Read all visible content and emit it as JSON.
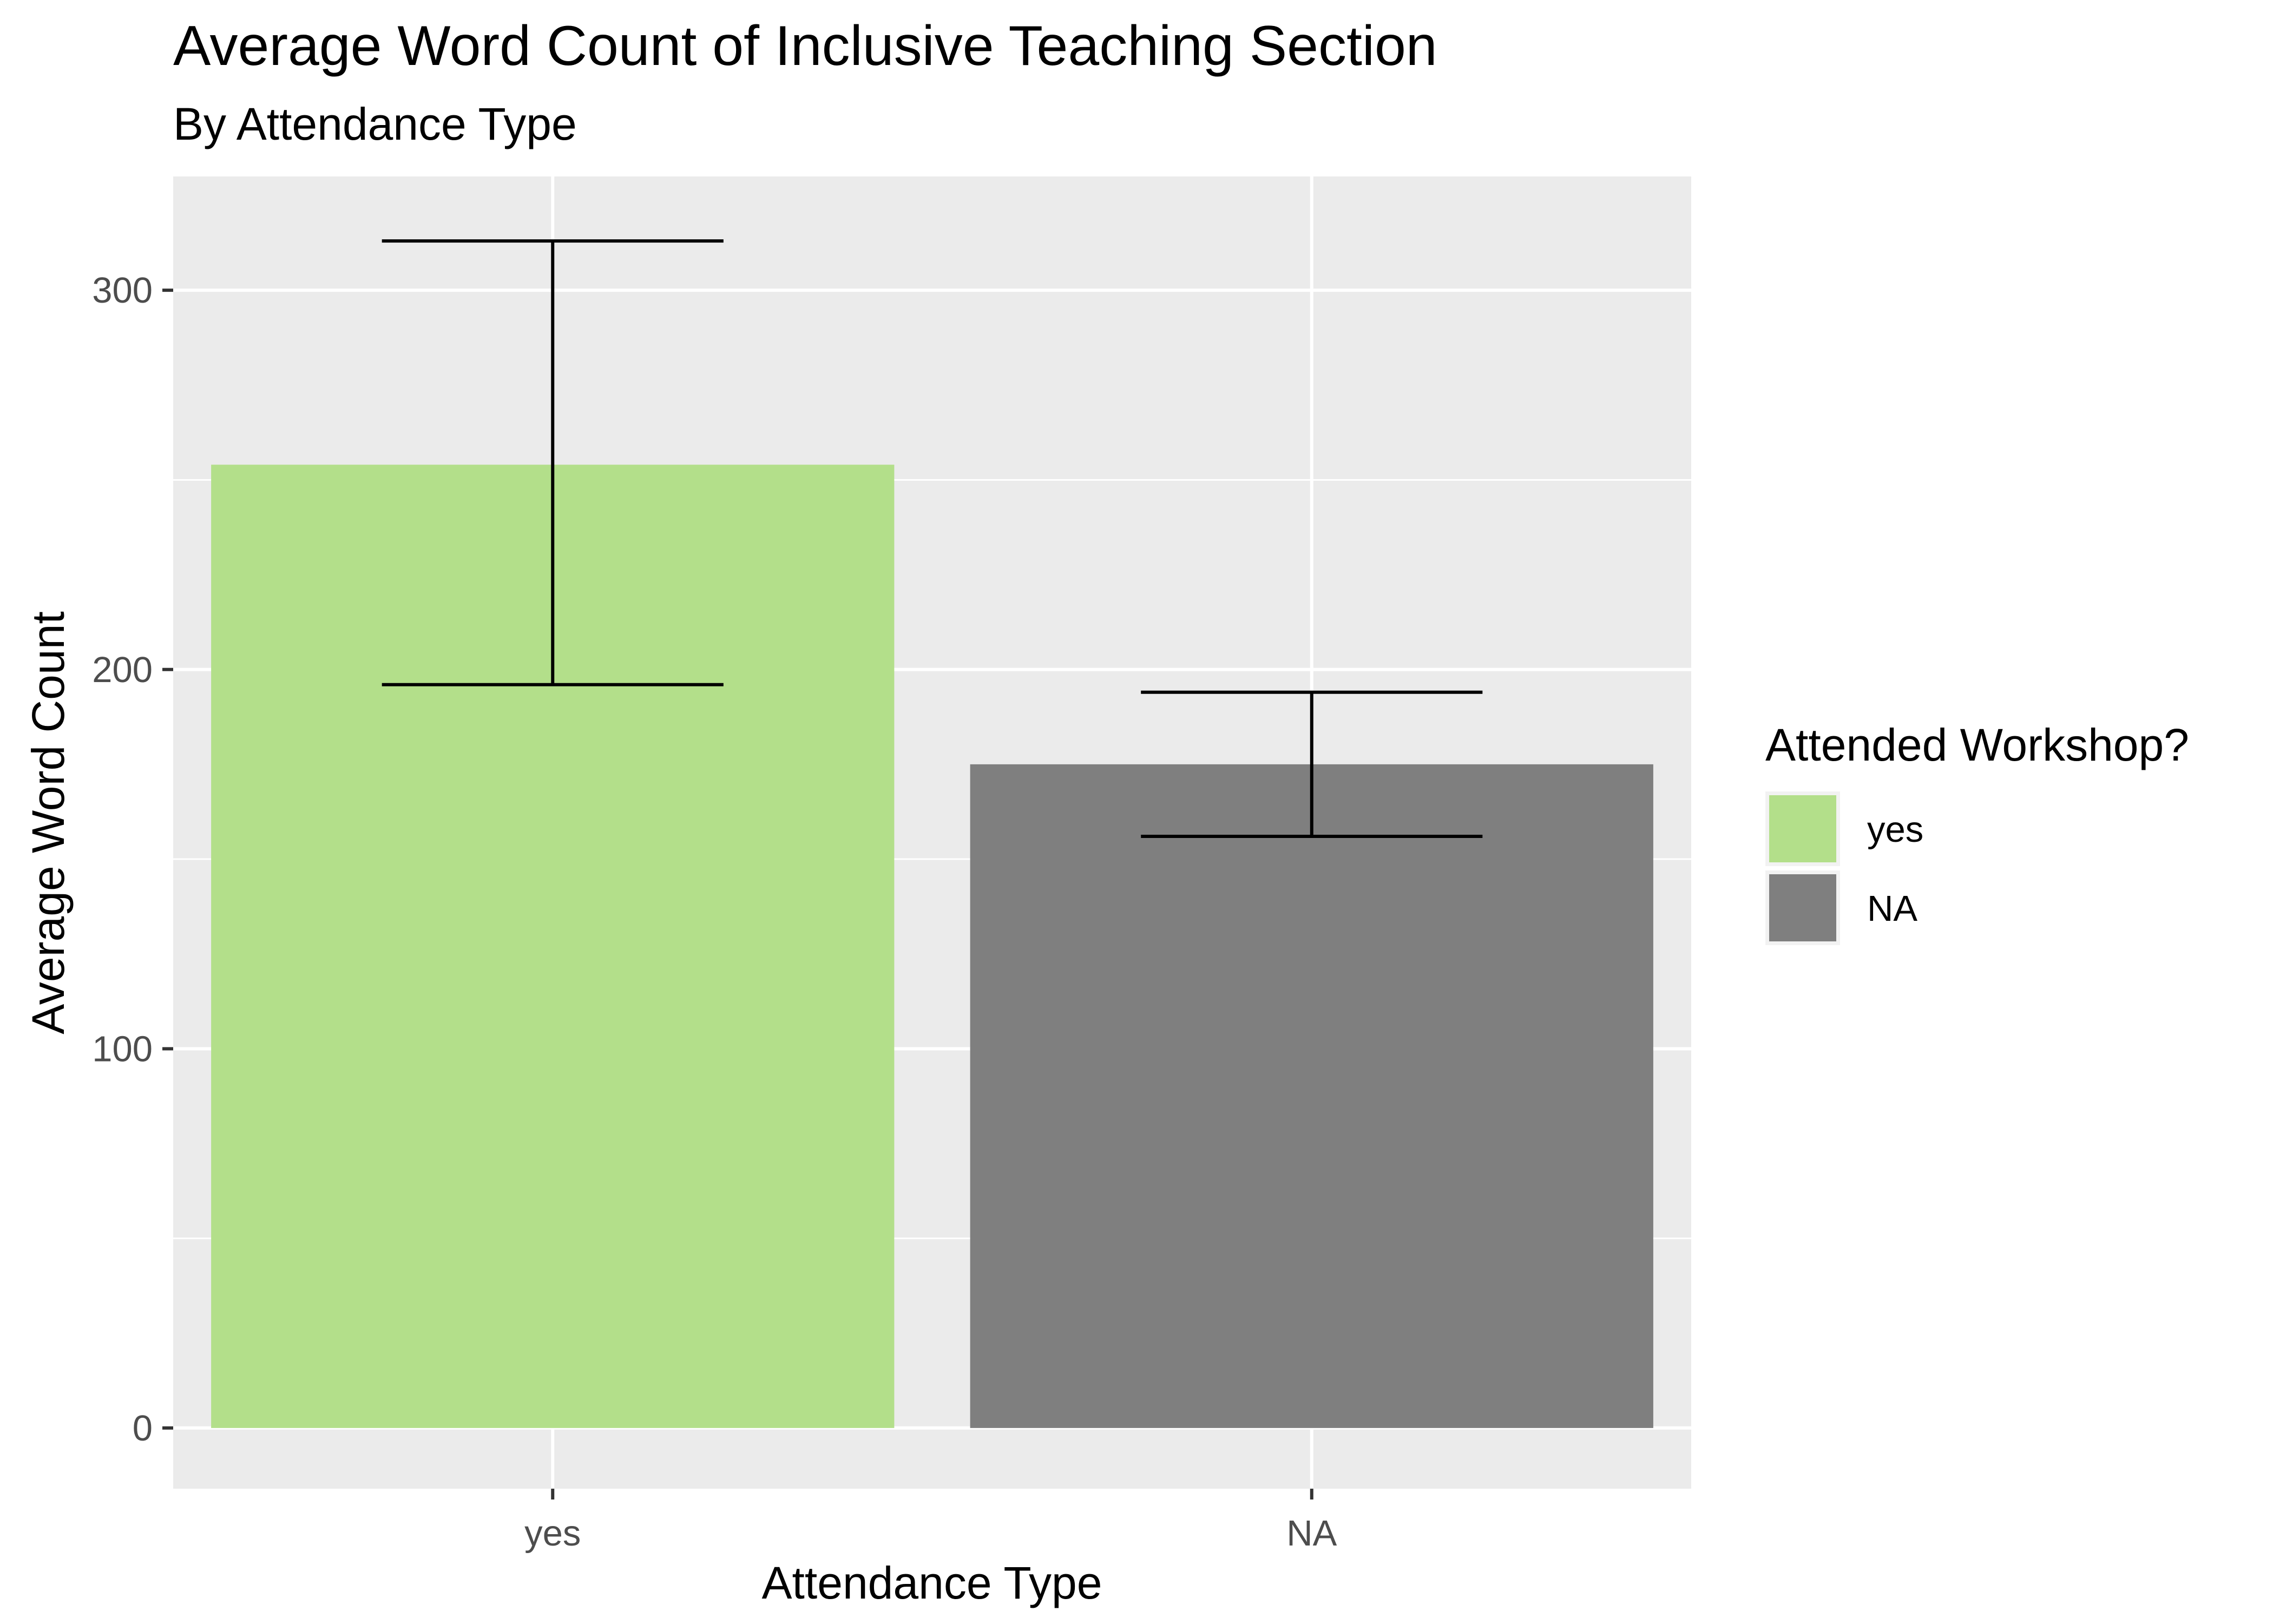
{
  "chart_data": {
    "type": "bar",
    "title": "Average Word Count of Inclusive Teaching Section",
    "subtitle": "By Attendance Type",
    "xlabel": "Attendance Type",
    "ylabel": "Average Word Count",
    "categories": [
      "yes",
      "NA"
    ],
    "values": [
      254,
      175
    ],
    "error_bars": [
      {
        "lower": 196,
        "upper": 313
      },
      {
        "lower": 156,
        "upper": 194
      }
    ],
    "ylim": [
      -16,
      330
    ],
    "yticks": [
      0,
      100,
      200,
      300
    ],
    "grid": true,
    "legend": {
      "title": "Attended Workshop?",
      "position": "right",
      "entries": [
        {
          "label": "yes",
          "color": "#b3df8a"
        },
        {
          "label": "NA",
          "color": "#7f7f7f"
        }
      ]
    },
    "colors": {
      "panel_background": "#ebebeb",
      "grid": "#ffffff",
      "error_bar": "#000000"
    }
  }
}
